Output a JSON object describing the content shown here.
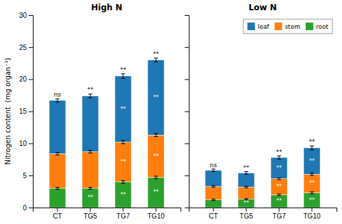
{
  "chart_data": [
    {
      "type": "bar",
      "stacked": true,
      "grid": false,
      "title": "High N",
      "ylabel": "Nitrogen content  (mg organ⁻¹)",
      "categories": [
        "CT",
        "TG5",
        "TG7",
        "TG10"
      ],
      "ylim": [
        0,
        30
      ],
      "yticks": [
        0,
        5,
        10,
        15,
        20,
        25,
        30
      ],
      "annotations": [
        "ns",
        "**",
        "**",
        "**"
      ],
      "series": [
        {
          "name": "leaf",
          "values": [
            8.3,
            8.7,
            10.3,
            11.7
          ],
          "errors": [
            0.25,
            0.3,
            0.35,
            0.3
          ],
          "annotations": [
            null,
            null,
            "**",
            "**"
          ]
        },
        {
          "name": "stem",
          "values": [
            5.4,
            5.7,
            6.2,
            6.6
          ],
          "errors": [
            0.2,
            0.2,
            0.25,
            0.25
          ],
          "annotations": [
            null,
            null,
            "**",
            "**"
          ]
        },
        {
          "name": "root",
          "values": [
            3.0,
            3.0,
            4.0,
            4.7
          ],
          "errors": [
            0.15,
            0.15,
            0.2,
            0.2
          ],
          "annotations": [
            null,
            "**",
            "**",
            "**"
          ]
        }
      ]
    },
    {
      "type": "bar",
      "stacked": true,
      "grid": false,
      "tick_labels": "x",
      "legend": "upper right",
      "title": "Low N",
      "categories": [
        "CT",
        "TG5",
        "TG7",
        "TG10"
      ],
      "ylim": [
        0,
        30
      ],
      "yticks": [
        0,
        5,
        10,
        15,
        20,
        25,
        30
      ],
      "annotations": [
        "ns",
        "**",
        "**",
        "**"
      ],
      "series": [
        {
          "name": "leaf",
          "values": [
            2.5,
            2.2,
            3.3,
            4.1
          ],
          "errors": [
            0.2,
            0.2,
            0.25,
            0.3
          ],
          "annotations": [
            null,
            null,
            "**",
            "**"
          ]
        },
        {
          "name": "stem",
          "values": [
            2.1,
            1.9,
            2.5,
            2.9
          ],
          "errors": [
            0.12,
            0.12,
            0.15,
            0.18
          ],
          "annotations": [
            null,
            null,
            "**",
            "**"
          ]
        },
        {
          "name": "root",
          "values": [
            1.2,
            1.3,
            2.0,
            2.3
          ],
          "errors": [
            0.1,
            0.1,
            0.12,
            0.15
          ],
          "annotations": [
            null,
            "**",
            "**",
            "**"
          ]
        }
      ]
    }
  ]
}
